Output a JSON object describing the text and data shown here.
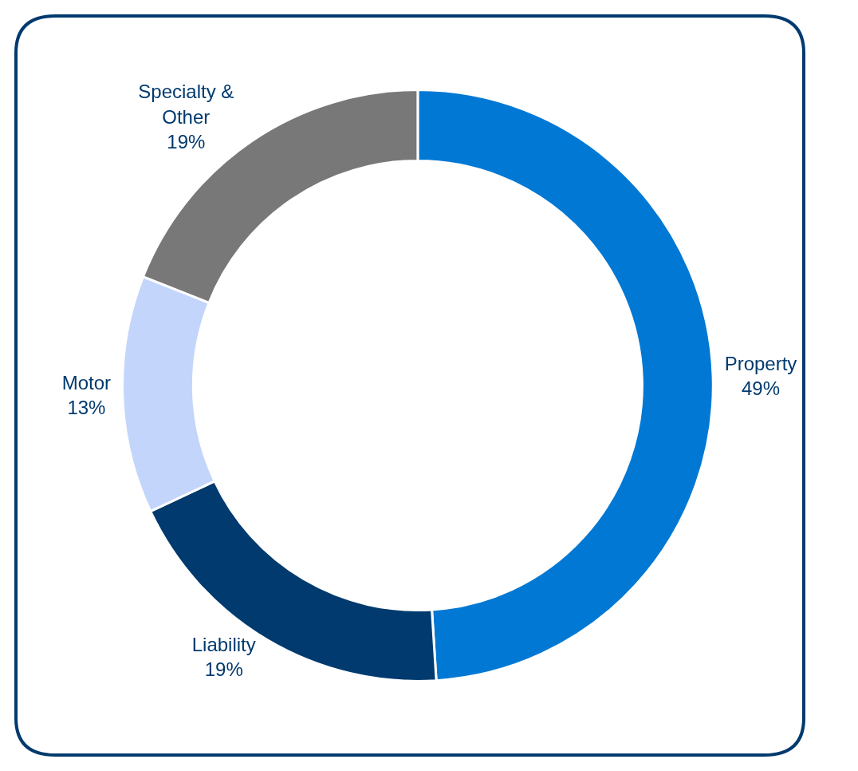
{
  "chart_data": {
    "type": "donut",
    "categories": [
      "Property",
      "Liability",
      "Motor",
      "Specialty & Other"
    ],
    "values": [
      49,
      19,
      13,
      19
    ],
    "value_labels": [
      "49%",
      "19%",
      "13%",
      "19%"
    ],
    "colors": [
      "#0078d4",
      "#003a6e",
      "#c3d5fb",
      "#787878"
    ],
    "legend": false
  }
}
